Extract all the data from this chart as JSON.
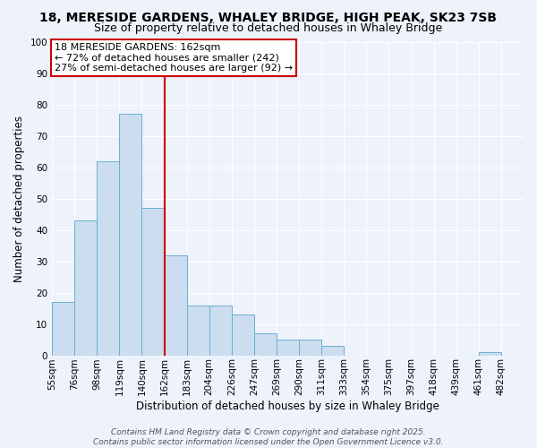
{
  "title_line1": "18, MERESIDE GARDENS, WHALEY BRIDGE, HIGH PEAK, SK23 7SB",
  "title_line2": "Size of property relative to detached houses in Whaley Bridge",
  "xlabel": "Distribution of detached houses by size in Whaley Bridge",
  "ylabel": "Number of detached properties",
  "bar_color": "#ccddef",
  "bar_edge_color": "#6aafd6",
  "background_color": "#eef2fb",
  "grid_color": "#ffffff",
  "bin_labels": [
    "55sqm",
    "76sqm",
    "98sqm",
    "119sqm",
    "140sqm",
    "162sqm",
    "183sqm",
    "204sqm",
    "226sqm",
    "247sqm",
    "269sqm",
    "290sqm",
    "311sqm",
    "333sqm",
    "354sqm",
    "375sqm",
    "397sqm",
    "418sqm",
    "439sqm",
    "461sqm",
    "482sqm"
  ],
  "bin_values": [
    17,
    43,
    62,
    77,
    47,
    32,
    16,
    16,
    13,
    7,
    5,
    5,
    3,
    0,
    0,
    0,
    0,
    0,
    0,
    1,
    0
  ],
  "vline_index": 5,
  "vline_color": "#cc0000",
  "annotation_title": "18 MERESIDE GARDENS: 162sqm",
  "annotation_line1": "← 72% of detached houses are smaller (242)",
  "annotation_line2": "27% of semi-detached houses are larger (92) →",
  "annotation_box_color": "#ffffff",
  "annotation_box_edge": "#cc0000",
  "ylim": [
    0,
    100
  ],
  "yticks": [
    0,
    10,
    20,
    30,
    40,
    50,
    60,
    70,
    80,
    90,
    100
  ],
  "footer_line1": "Contains HM Land Registry data © Crown copyright and database right 2025.",
  "footer_line2": "Contains public sector information licensed under the Open Government Licence v3.0.",
  "title_fontsize": 10,
  "subtitle_fontsize": 9,
  "axis_label_fontsize": 8.5,
  "tick_fontsize": 7.5,
  "annotation_fontsize": 8,
  "footer_fontsize": 6.5
}
